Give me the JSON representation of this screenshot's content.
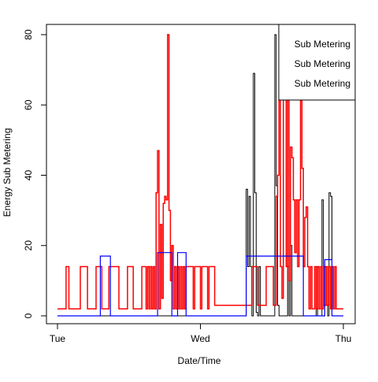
{
  "chart_data": {
    "type": "line",
    "title": "",
    "xlabel": "Date/Time",
    "ylabel": "Energy Sub Metering",
    "x_ticks": [
      "Tue",
      "Wed",
      "Thu"
    ],
    "x_tick_positions": [
      0,
      1,
      2
    ],
    "xlim": [
      0,
      2
    ],
    "ylim": [
      0,
      80
    ],
    "y_ticks": [
      0,
      20,
      40,
      60,
      80
    ],
    "grid": false,
    "legend": {
      "placement": "top-right",
      "entries": [
        "Sub Metering",
        "Sub Metering",
        "Sub Metering"
      ]
    },
    "series": [
      {
        "color": "#000000",
        "x": [
          0,
          1.3,
          1.32,
          1.33,
          1.34,
          1.35,
          1.36,
          1.37,
          1.38,
          1.39,
          1.4,
          1.41,
          1.42,
          1.43,
          1.44,
          1.45,
          1.5,
          1.52,
          1.53,
          1.54,
          1.55,
          1.6,
          1.61,
          1.62,
          1.63,
          1.64,
          1.65,
          1.7,
          1.8,
          1.81,
          1.82,
          1.85,
          1.86,
          1.87,
          1.88,
          1.89,
          1.9,
          1.91,
          1.92,
          1.93,
          1.94,
          1.95,
          2
        ],
        "y": [
          0,
          0,
          36,
          14,
          34,
          14,
          0,
          69,
          35,
          1,
          0,
          14,
          0,
          0,
          0,
          0,
          0,
          80,
          37,
          3,
          0,
          0,
          14,
          0,
          20,
          0,
          0,
          0,
          0,
          14,
          0,
          33,
          3,
          14,
          3,
          0,
          35,
          34,
          0,
          0,
          0,
          0,
          0
        ]
      },
      {
        "color": "#ff0000",
        "x": [
          0,
          0.05,
          0.06,
          0.07,
          0.08,
          0.15,
          0.16,
          0.2,
          0.21,
          0.26,
          0.27,
          0.3,
          0.31,
          0.35,
          0.36,
          0.42,
          0.43,
          0.48,
          0.49,
          0.52,
          0.53,
          0.58,
          0.59,
          0.62,
          0.63,
          0.64,
          0.65,
          0.66,
          0.67,
          0.68,
          0.69,
          0.7,
          0.71,
          0.72,
          0.73,
          0.74,
          0.75,
          0.76,
          0.77,
          0.78,
          0.79,
          0.8,
          0.81,
          0.82,
          0.83,
          0.84,
          0.85,
          0.86,
          0.87,
          0.88,
          0.89,
          0.9,
          0.95,
          0.96,
          1.0,
          1.01,
          1.05,
          1.06,
          1.1,
          1.15,
          1.2,
          1.3,
          1.35,
          1.36,
          1.4,
          1.45,
          1.46,
          1.5,
          1.51,
          1.52,
          1.53,
          1.54,
          1.55,
          1.56,
          1.57,
          1.58,
          1.6,
          1.61,
          1.62,
          1.63,
          1.64,
          1.65,
          1.66,
          1.67,
          1.68,
          1.69,
          1.7,
          1.71,
          1.72,
          1.73,
          1.74,
          1.75,
          1.76,
          1.77,
          1.78,
          1.8,
          1.81,
          1.82,
          1.83,
          1.84,
          1.85,
          1.86,
          1.87,
          1.88,
          1.89,
          1.9,
          1.91,
          1.92,
          1.93,
          1.94,
          1.95,
          2
        ],
        "y": [
          2,
          2,
          14,
          14,
          2,
          2,
          14,
          14,
          2,
          2,
          14,
          14,
          2,
          2,
          14,
          14,
          2,
          2,
          14,
          14,
          2,
          2,
          14,
          2,
          14,
          2,
          14,
          2,
          14,
          2,
          35,
          47,
          2,
          26,
          5,
          32,
          34,
          33,
          80,
          30,
          10,
          20,
          2,
          14,
          2,
          14,
          2,
          14,
          2,
          14,
          2,
          14,
          2,
          14,
          2,
          14,
          2,
          14,
          3,
          3,
          3,
          3,
          3,
          14,
          3,
          3,
          14,
          14,
          3,
          3,
          34,
          40,
          76,
          14,
          5,
          62,
          14,
          80,
          10,
          48,
          45,
          33,
          18,
          33,
          14,
          33,
          62,
          42,
          14,
          28,
          31,
          14,
          2,
          14,
          2,
          14,
          2,
          14,
          2,
          14,
          2,
          14,
          3,
          14,
          3,
          14,
          2,
          14,
          2,
          14,
          2,
          2
        ]
      },
      {
        "color": "#0000ff",
        "x": [
          0,
          0.28,
          0.3,
          0.35,
          0.37,
          0.68,
          0.7,
          0.78,
          0.8,
          0.82,
          0.84,
          0.88,
          0.9,
          0.93,
          0.95,
          1.3,
          1.32,
          1.38,
          1.5,
          1.55,
          1.6,
          1.65,
          1.7,
          1.72,
          1.85,
          1.87,
          1.9,
          1.92,
          1.95,
          2
        ],
        "y": [
          0,
          0,
          17,
          17,
          0,
          0,
          18,
          18,
          0,
          0,
          18,
          18,
          0,
          0,
          0,
          0,
          17,
          17,
          17,
          17,
          17,
          17,
          17,
          0,
          0,
          16,
          16,
          0,
          0,
          0
        ]
      }
    ]
  }
}
